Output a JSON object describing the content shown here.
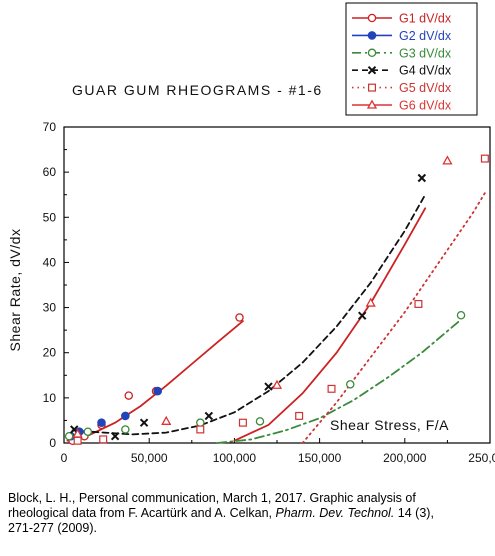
{
  "chart_data": {
    "type": "scatter",
    "title": "GUAR GUM RHEOGRAMS - #1-6",
    "xlabel": "Shear Stress, F/A",
    "ylabel": "Shear Rate, dV/dx",
    "xlim": [
      0,
      250000
    ],
    "ylim": [
      0,
      70
    ],
    "xticks": [
      "0",
      "50,000",
      "100,000",
      "150,000",
      "200,000",
      "250,000"
    ],
    "yticks": [
      "0",
      "10",
      "20",
      "30",
      "40",
      "50",
      "60",
      "70"
    ],
    "grid": false,
    "legend_position": "top-right",
    "series": [
      {
        "name": "G1 dV/dx",
        "color": "#cc2222",
        "marker": "open-circle",
        "line": "solid",
        "x": [
          5000,
          12000,
          22000,
          38000,
          54000,
          103000
        ],
        "y": [
          0.5,
          1.5,
          4,
          10.5,
          11.5,
          27.8
        ]
      },
      {
        "name": "G2 dV/dx",
        "color": "#2244bb",
        "marker": "filled-circle",
        "line": "none",
        "x": [
          4000,
          9000,
          22000,
          36000,
          55000
        ],
        "y": [
          1.5,
          2.5,
          4.5,
          6,
          11.5
        ]
      },
      {
        "name": "G3 dV/dx",
        "color": "#3a8a3a",
        "marker": "open-circle",
        "line": "dash-dot",
        "x": [
          3000,
          14000,
          36000,
          80000,
          115000,
          168000,
          233000
        ],
        "y": [
          1.5,
          2.5,
          3,
          4.5,
          4.8,
          13,
          28.3
        ]
      },
      {
        "name": "G4 dV/dx",
        "color": "#111111",
        "marker": "x",
        "line": "dashed",
        "x": [
          6000,
          30000,
          47000,
          85000,
          120000,
          175000,
          210000
        ],
        "y": [
          3,
          1.5,
          4.5,
          6,
          12.5,
          28.2,
          58.7
        ]
      },
      {
        "name": "G5 dV/dx",
        "color": "#cc3333",
        "marker": "open-square",
        "line": "dotted",
        "x": [
          8000,
          23000,
          80000,
          105000,
          138000,
          157000,
          208000,
          247000
        ],
        "y": [
          0.5,
          0.8,
          3,
          4.5,
          6,
          12,
          30.8,
          63
        ]
      },
      {
        "name": "G6 dV/dx",
        "color": "#dd3333",
        "marker": "open-triangle",
        "line": "none",
        "x": [
          8000,
          60000,
          125000,
          180000,
          225000
        ],
        "y": [
          2,
          4.8,
          12.8,
          31,
          62.5
        ]
      }
    ],
    "curves": [
      {
        "series": "G1 dV/dx",
        "x": [
          2000,
          15000,
          30000,
          45000,
          60000,
          75000,
          90000,
          105000
        ],
        "y": [
          0.5,
          1.8,
          4.5,
          8.2,
          12.7,
          17.5,
          22.3,
          27
        ]
      },
      {
        "series": "G4 dV/dx",
        "x": [
          5000,
          20000,
          40000,
          60000,
          80000,
          100000,
          120000,
          140000,
          160000,
          180000,
          200000,
          212000
        ],
        "y": [
          2.8,
          2.4,
          1.9,
          2.3,
          3.9,
          6.8,
          11.5,
          17.8,
          25.8,
          35.5,
          47,
          55
        ]
      },
      {
        "series": "G1 dV/dx",
        "x": [
          100000,
          120000,
          140000,
          160000,
          180000,
          200000,
          212000
        ],
        "y": [
          0.5,
          4,
          11,
          20,
          31,
          44,
          52
        ]
      },
      {
        "series": "G3 dV/dx",
        "x": [
          90000,
          110000,
          130000,
          150000,
          170000,
          190000,
          210000,
          232000
        ],
        "y": [
          0,
          0.8,
          2.8,
          5.5,
          9.5,
          14.5,
          20,
          27
        ]
      },
      {
        "series": "G5 dV/dx",
        "x": [
          140000,
          160000,
          180000,
          200000,
          220000,
          240000,
          248000
        ],
        "y": [
          0,
          9,
          19,
          29,
          40,
          51,
          56
        ]
      }
    ]
  },
  "caption": {
    "lines": [
      "Block, L. H., Personal communication, March 1, 2017. Graphic analysis of",
      "rheological data from F. Acartürk and A. Celkan, ",
      "Pharm. Dev. Technol.",
      " 14 (3),",
      "271-277 (2009)."
    ]
  }
}
